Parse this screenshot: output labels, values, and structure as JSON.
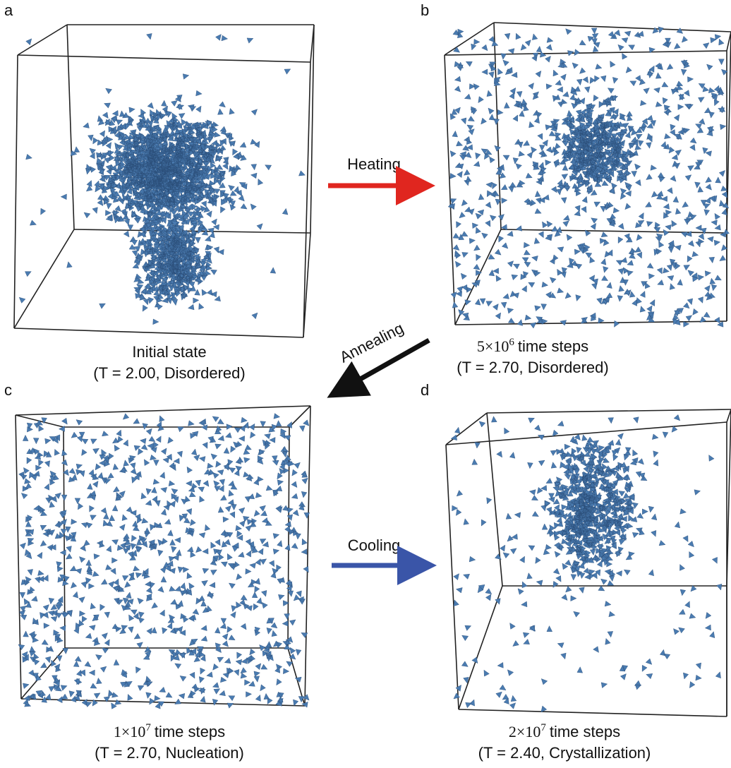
{
  "panels": [
    {
      "label": "a",
      "caption": {
        "line1": "Initial state",
        "line2": "(T = 2.00, Disordered)"
      }
    },
    {
      "label": "b",
      "caption": {
        "base": "5×10",
        "exponent": "6",
        "text": "time steps",
        "line2": "(T = 2.70, Disordered)"
      }
    },
    {
      "label": "c",
      "caption": {
        "base": "1×10",
        "exponent": "7",
        "text": "time steps",
        "line2": "(T = 2.70, Nucleation)"
      }
    },
    {
      "label": "d",
      "caption": {
        "base": "2×10",
        "exponent": "7",
        "text": "time steps",
        "line2": "(T = 2.40, Crystallization)"
      }
    }
  ],
  "arrows": {
    "heating": "Heating",
    "annealing": "Annealing",
    "cooling": "Cooling"
  }
}
